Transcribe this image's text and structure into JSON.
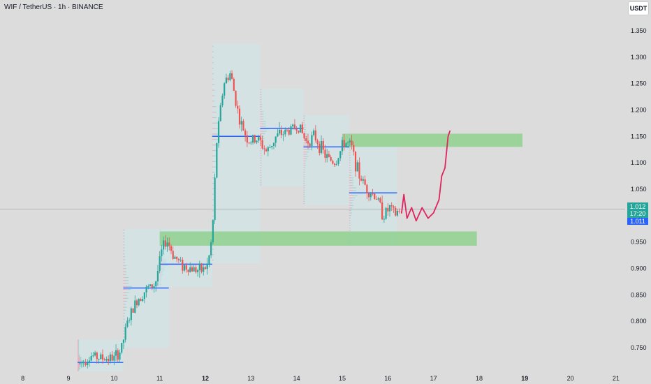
{
  "header": {
    "title": "WIF / TetherUS · 1h · BINANCE",
    "currency": "USDT"
  },
  "price_tags": {
    "last": "1.012",
    "countdown": "17:20",
    "bid": "1.011"
  },
  "colors": {
    "up": "#26a69a",
    "down": "#ef5350",
    "zone": "#8fd18f",
    "poc": "#2962ff",
    "profile_box": "#cfe6ea",
    "projection": "#e0245e"
  },
  "chart_data": {
    "type": "candlestick",
    "ylim": [
      0.705,
      1.375
    ],
    "xlim": [
      7.5,
      21.2
    ],
    "y_ticks": [
      "0.750",
      "0.800",
      "0.850",
      "0.900",
      "0.950",
      "1.000",
      "1.050",
      "1.100",
      "1.150",
      "1.200",
      "1.250",
      "1.300",
      "1.350"
    ],
    "x_ticks": [
      {
        "label": "8",
        "bold": false
      },
      {
        "label": "9",
        "bold": false
      },
      {
        "label": "10",
        "bold": false
      },
      {
        "label": "11",
        "bold": false
      },
      {
        "label": "12",
        "bold": true
      },
      {
        "label": "13",
        "bold": false
      },
      {
        "label": "14",
        "bold": false
      },
      {
        "label": "15",
        "bold": false
      },
      {
        "label": "16",
        "bold": false
      },
      {
        "label": "17",
        "bold": false
      },
      {
        "label": "18",
        "bold": false
      },
      {
        "label": "19",
        "bold": true
      },
      {
        "label": "20",
        "bold": false
      },
      {
        "label": "21",
        "bold": false
      }
    ],
    "current_price": 1.012,
    "price_path": [
      [
        9.25,
        0.72
      ],
      [
        9.5,
        0.735
      ],
      [
        9.75,
        0.73
      ],
      [
        10.0,
        0.73
      ],
      [
        10.15,
        0.745
      ],
      [
        10.3,
        0.8
      ],
      [
        10.5,
        0.84
      ],
      [
        10.7,
        0.86
      ],
      [
        10.9,
        0.87
      ],
      [
        11.05,
        0.935
      ],
      [
        11.15,
        0.955
      ],
      [
        11.3,
        0.925
      ],
      [
        11.5,
        0.905
      ],
      [
        11.7,
        0.9
      ],
      [
        11.9,
        0.895
      ],
      [
        12.05,
        0.905
      ],
      [
        12.15,
        0.96
      ],
      [
        12.25,
        1.14
      ],
      [
        12.4,
        1.25
      ],
      [
        12.55,
        1.27
      ],
      [
        12.75,
        1.18
      ],
      [
        12.95,
        1.14
      ],
      [
        13.15,
        1.145
      ],
      [
        13.35,
        1.12
      ],
      [
        13.55,
        1.15
      ],
      [
        13.8,
        1.16
      ],
      [
        14.05,
        1.17
      ],
      [
        14.2,
        1.14
      ],
      [
        14.4,
        1.15
      ],
      [
        14.65,
        1.11
      ],
      [
        14.85,
        1.1
      ],
      [
        15.05,
        1.14
      ],
      [
        15.2,
        1.13
      ],
      [
        15.35,
        1.08
      ],
      [
        15.55,
        1.05
      ],
      [
        15.75,
        1.035
      ],
      [
        15.9,
        1.0
      ],
      [
        16.05,
        1.015
      ],
      [
        16.15,
        1.0
      ],
      [
        16.25,
        1.012
      ]
    ],
    "zones": [
      {
        "x0": 11.0,
        "x1": 17.95,
        "y0": 0.943,
        "y1": 0.97
      },
      {
        "x0": 15.0,
        "x1": 18.95,
        "y0": 1.13,
        "y1": 1.155
      }
    ],
    "volume_profiles": [
      {
        "x0": 9.2,
        "x1": 10.2,
        "y0": 0.705,
        "y1": 0.765,
        "poc": 0.722
      },
      {
        "x0": 11.0,
        "x1": 12.15,
        "y0": 0.865,
        "y1": 0.975,
        "poc": 0.908
      },
      {
        "x0": 10.2,
        "x1": 11.2,
        "y0": 0.75,
        "y1": 0.975,
        "poc": 0.863
      },
      {
        "x0": 12.15,
        "x1": 13.2,
        "y0": 0.91,
        "y1": 1.325,
        "poc": 1.15
      },
      {
        "x0": 13.2,
        "x1": 14.15,
        "y0": 1.055,
        "y1": 1.24,
        "poc": 1.165
      },
      {
        "x0": 14.15,
        "x1": 15.15,
        "y0": 1.02,
        "y1": 1.19,
        "poc": 1.13
      },
      {
        "x0": 15.15,
        "x1": 16.2,
        "y0": 0.945,
        "y1": 1.135,
        "poc": 1.043
      }
    ],
    "projection_path": [
      [
        16.3,
        1.005
      ],
      [
        16.35,
        1.04
      ],
      [
        16.42,
        0.995
      ],
      [
        16.52,
        1.015
      ],
      [
        16.62,
        0.99
      ],
      [
        16.75,
        1.015
      ],
      [
        16.88,
        0.995
      ],
      [
        17.0,
        1.005
      ],
      [
        17.12,
        1.03
      ],
      [
        17.18,
        1.075
      ],
      [
        17.25,
        1.09
      ],
      [
        17.32,
        1.15
      ],
      [
        17.36,
        1.16
      ]
    ]
  }
}
